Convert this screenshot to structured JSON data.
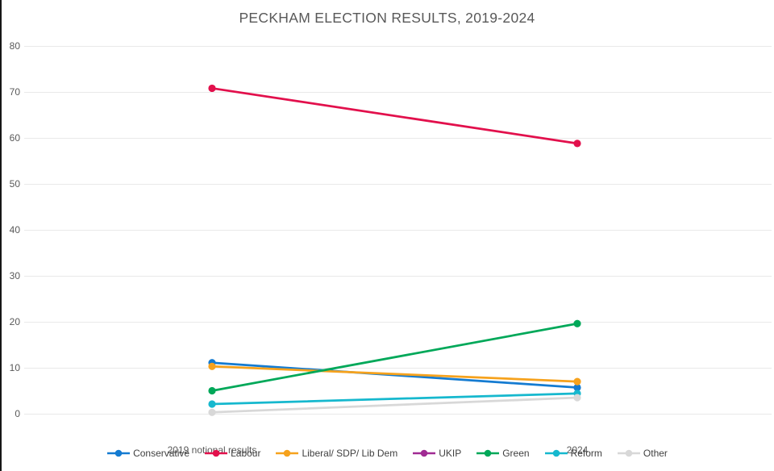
{
  "window": {
    "title": "PECKHAM ELECTION RESULTS, 2019-2024"
  },
  "chart_data": {
    "type": "line",
    "title": "PECKHAM ELECTION RESULTS, 2019-2024",
    "categories": [
      "2019 notional results",
      "2024"
    ],
    "series": [
      {
        "name": "Conservative",
        "color": "#147BD1",
        "values": [
          11.1,
          5.7
        ]
      },
      {
        "name": "Labour",
        "color": "#E2104C",
        "values": [
          70.8,
          58.8
        ]
      },
      {
        "name": "Liberal/ SDP/ Lib Dem",
        "color": "#F6A21D",
        "values": [
          10.3,
          7.0
        ]
      },
      {
        "name": "UKIP",
        "color": "#A02B93",
        "values": [
          null,
          null
        ]
      },
      {
        "name": "Green",
        "color": "#00A859",
        "values": [
          5.0,
          19.6
        ]
      },
      {
        "name": "Reform",
        "color": "#16B8CE",
        "values": [
          2.1,
          4.4
        ]
      },
      {
        "name": "Other",
        "color": "#D8D8D8",
        "values": [
          0.3,
          3.5
        ]
      }
    ],
    "ylim": [
      0,
      80
    ],
    "yticks": [
      0,
      10,
      20,
      30,
      40,
      50,
      60,
      70,
      80
    ],
    "grid": true,
    "legend_position": "bottom",
    "xlabel": "",
    "ylabel": ""
  },
  "colors": {
    "grid": "#E9E9E9",
    "axis_text": "#595959",
    "title_text": "#595959",
    "legend_text": "#404040",
    "background": "#FFFFFF",
    "screen_edge": "#161616"
  }
}
